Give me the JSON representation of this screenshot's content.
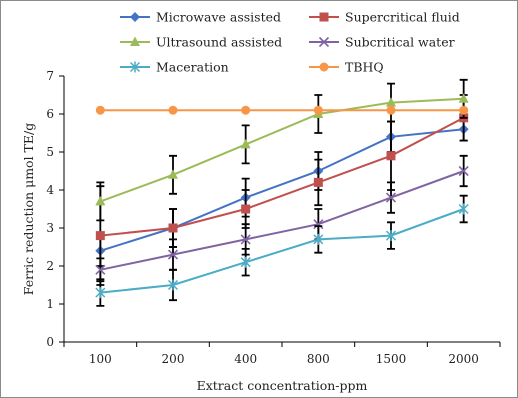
{
  "chart_data": {
    "type": "line",
    "categories": [
      "100",
      "200",
      "400",
      "800",
      "1500",
      "2000"
    ],
    "xlabel": "Extract concentration-ppm",
    "ylabel": "Ferric reduction μmol TE/g",
    "ylim": [
      0,
      7
    ],
    "yticks": [
      "0",
      "1",
      "2",
      "3",
      "4",
      "5",
      "6",
      "7"
    ],
    "grid": false,
    "legend_position": "top",
    "series": [
      {
        "name": "Microwave assisted",
        "color": "#4472c4",
        "marker": "diamond",
        "values": [
          2.4,
          3.0,
          3.8,
          4.5,
          5.4,
          5.6
        ],
        "errors": [
          0.4,
          0.5,
          0.5,
          0.5,
          0.4,
          0.3
        ]
      },
      {
        "name": "Supercritical fluid",
        "color": "#c0504d",
        "marker": "square",
        "values": [
          2.8,
          3.0,
          3.5,
          4.2,
          4.9,
          5.9
        ],
        "errors": [
          1.3,
          0.5,
          0.5,
          0.6,
          0.9,
          0.6
        ]
      },
      {
        "name": "Ultrasound assisted",
        "color": "#9bbb59",
        "marker": "triangle",
        "values": [
          3.7,
          4.4,
          5.2,
          6.0,
          6.3,
          6.4
        ],
        "errors": [
          0.5,
          0.5,
          0.5,
          0.5,
          0.5,
          0.5
        ]
      },
      {
        "name": "Subcritical water",
        "color": "#8064a2",
        "marker": "x",
        "values": [
          1.9,
          2.3,
          2.7,
          3.1,
          3.8,
          4.5
        ],
        "errors": [
          0.3,
          0.4,
          0.4,
          0.4,
          0.4,
          0.4
        ]
      },
      {
        "name": "Maceration",
        "color": "#4bacc6",
        "marker": "asterisk",
        "values": [
          1.3,
          1.5,
          2.1,
          2.7,
          2.8,
          3.5
        ],
        "errors": [
          0.35,
          0.4,
          0.35,
          0.35,
          0.35,
          0.35
        ]
      },
      {
        "name": "TBHQ",
        "color": "#f79646",
        "marker": "circle",
        "values": [
          6.1,
          6.1,
          6.1,
          6.1,
          6.1,
          6.1
        ],
        "errors": [
          0,
          0,
          0,
          0,
          0,
          0
        ]
      }
    ]
  }
}
